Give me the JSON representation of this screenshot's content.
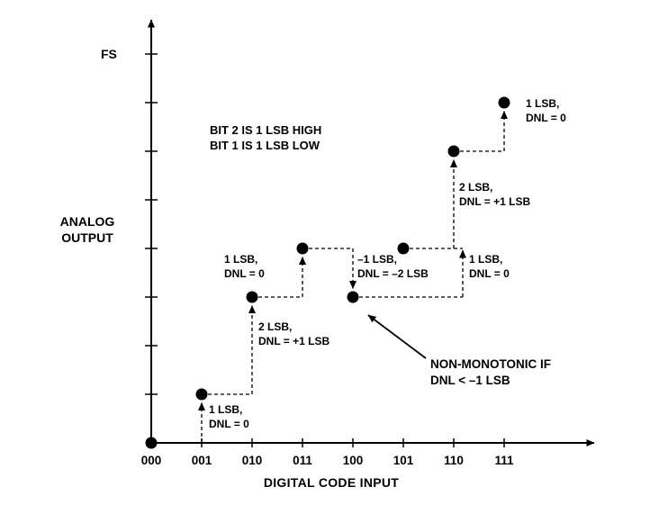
{
  "chart_data": {
    "type": "scatter",
    "title": "",
    "xlabel": "DIGITAL CODE INPUT",
    "ylabel_lines": [
      "ANALOG",
      "OUTPUT"
    ],
    "full_scale_label": "FS",
    "full_scale_lsb": 8,
    "x_categories": [
      "000",
      "001",
      "010",
      "011",
      "100",
      "101",
      "110",
      "111"
    ],
    "values_lsb": [
      0,
      1,
      3,
      4,
      3,
      4,
      6,
      7
    ],
    "ylim": [
      0,
      8.8
    ],
    "grid": false,
    "steps": [
      {
        "to_code": "001",
        "step_lsb": 1,
        "dnl_lsb": 0
      },
      {
        "to_code": "010",
        "step_lsb": 2,
        "dnl_lsb": 1
      },
      {
        "to_code": "011",
        "step_lsb": 1,
        "dnl_lsb": 0
      },
      {
        "to_code": "100",
        "step_lsb": -1,
        "dnl_lsb": -2
      },
      {
        "to_code": "101",
        "step_lsb": 1,
        "dnl_lsb": 0
      },
      {
        "to_code": "110",
        "step_lsb": 2,
        "dnl_lsb": 1
      },
      {
        "to_code": "111",
        "step_lsb": 1,
        "dnl_lsb": 0
      }
    ],
    "annotations": [
      {
        "for_code": "001",
        "lines": [
          "1 LSB,",
          "DNL = 0"
        ]
      },
      {
        "for_code": "010",
        "lines": [
          "2 LSB,",
          "DNL = +1 LSB"
        ]
      },
      {
        "for_code": "011",
        "lines": [
          "1 LSB,",
          "DNL = 0"
        ]
      },
      {
        "for_code": "100",
        "lines": [
          "–1 LSB,",
          "DNL = –2 LSB"
        ]
      },
      {
        "for_code": "101",
        "lines": [
          "1 LSB,",
          "DNL = 0"
        ]
      },
      {
        "for_code": "110",
        "lines": [
          "2 LSB,",
          "DNL = +1 LSB"
        ]
      },
      {
        "for_code": "111",
        "lines": [
          "1 LSB,",
          "DNL = 0"
        ]
      }
    ],
    "note_lines": [
      "BIT 2 IS 1 LSB HIGH",
      "BIT 1 IS 1 LSB LOW"
    ],
    "callout_lines": [
      "NON-MONOTONIC IF",
      "DNL < –1 LSB"
    ]
  }
}
